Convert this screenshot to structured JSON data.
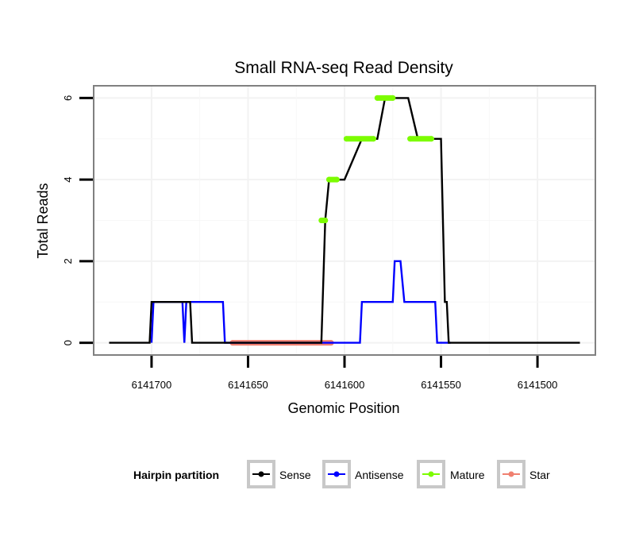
{
  "chart_data": {
    "type": "line",
    "title": "Small RNA-seq Read Density",
    "xlabel": "Genomic Position",
    "ylabel": "Total Reads",
    "xlim": [
      6141730,
      6141470
    ],
    "x_reversed": true,
    "ylim": [
      -0.3,
      6.3
    ],
    "x_ticks": [
      6141700,
      6141650,
      6141600,
      6141550,
      6141500
    ],
    "x_tick_labels": [
      "6141700",
      "6141650",
      "6141600",
      "6141550",
      "6141500"
    ],
    "y_ticks": [
      0,
      2,
      4,
      6
    ],
    "y_tick_labels": [
      "0",
      "2",
      "4",
      "6"
    ],
    "grid": true,
    "legend": {
      "title": "Hairpin partition",
      "position": "bottom",
      "entries": [
        {
          "name": "Sense",
          "color": "#000000"
        },
        {
          "name": "Antisense",
          "color": "#0000ff"
        },
        {
          "name": "Mature",
          "color": "#7cfc00"
        },
        {
          "name": "Star",
          "color": "#f08070"
        }
      ]
    },
    "series": [
      {
        "name": "Sense",
        "color": "#000000",
        "x": [
          6141722,
          6141701,
          6141700,
          6141680,
          6141679,
          6141612,
          6141610,
          6141608,
          6141600,
          6141591,
          6141583,
          6141579,
          6141567,
          6141562,
          6141550,
          6141548,
          6141547,
          6141546,
          6141544,
          6141478
        ],
        "y": [
          0,
          0,
          1,
          1,
          0,
          0,
          3,
          4,
          4,
          5,
          5,
          6,
          6,
          5,
          5,
          1,
          1,
          0,
          0,
          0
        ]
      },
      {
        "name": "Antisense",
        "color": "#0000ff",
        "x": [
          6141700,
          6141699,
          6141684,
          6141683,
          6141683,
          6141682,
          6141663,
          6141662,
          6141592,
          6141591,
          6141575,
          6141574,
          6141571,
          6141569,
          6141553,
          6141552,
          6141545
        ],
        "y": [
          0,
          1,
          1,
          0,
          0,
          1,
          1,
          0,
          0,
          1,
          1,
          2,
          2,
          1,
          1,
          0,
          0
        ]
      },
      {
        "name": "Mature",
        "color": "#7cfc00",
        "x": [
          6141612,
          6141610,
          6141608,
          6141604,
          6141599,
          6141585,
          6141583,
          6141575,
          6141566,
          6141555
        ],
        "y": [
          3,
          3,
          4,
          4,
          5,
          5,
          6,
          6,
          5,
          5
        ]
      },
      {
        "name": "Star",
        "color": "#f08070",
        "x": [
          6141658,
          6141607
        ],
        "y": [
          0,
          0
        ]
      }
    ]
  }
}
